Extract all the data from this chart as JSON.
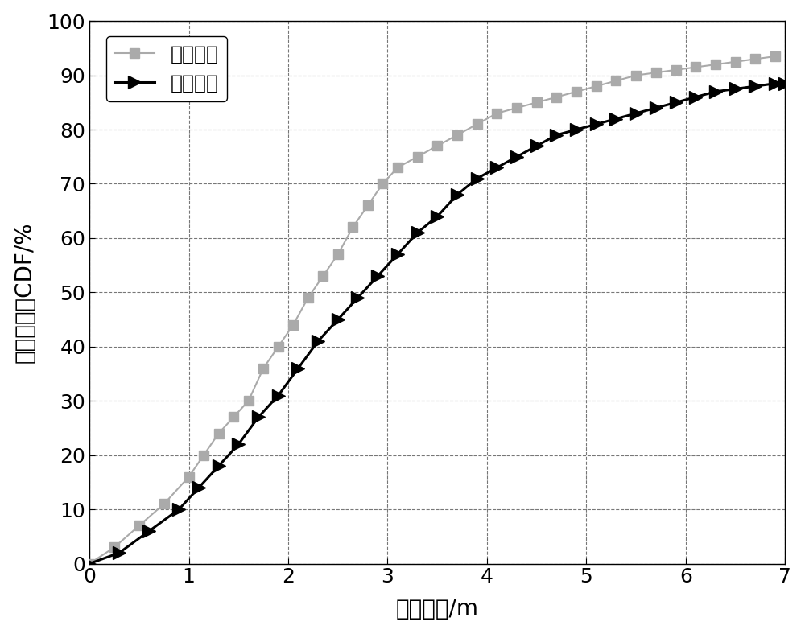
{
  "xlabel": "定位误差/m",
  "ylabel": "定位误差的CDF/%",
  "xlim": [
    0,
    7
  ],
  "ylim": [
    0,
    100
  ],
  "xticks": [
    0,
    1,
    2,
    3,
    4,
    5,
    6,
    7
  ],
  "yticks": [
    0,
    10,
    20,
    30,
    40,
    50,
    60,
    70,
    80,
    90,
    100
  ],
  "legend1": "无偏估计",
  "legend2": "有偏估计",
  "unbiased_x": [
    0,
    0.25,
    0.5,
    0.75,
    1.0,
    1.15,
    1.3,
    1.45,
    1.6,
    1.75,
    1.9,
    2.05,
    2.2,
    2.35,
    2.5,
    2.65,
    2.8,
    2.95,
    3.1,
    3.3,
    3.5,
    3.7,
    3.9,
    4.1,
    4.3,
    4.5,
    4.7,
    4.9,
    5.1,
    5.3,
    5.5,
    5.7,
    5.9,
    6.1,
    6.3,
    6.5,
    6.7,
    6.9
  ],
  "unbiased_y": [
    0,
    3,
    7,
    11,
    16,
    20,
    24,
    27,
    30,
    36,
    40,
    44,
    49,
    53,
    57,
    62,
    66,
    70,
    73,
    75,
    77,
    79,
    81,
    83,
    84,
    85,
    86,
    87,
    88,
    89,
    90,
    90.5,
    91,
    91.5,
    92,
    92.5,
    93,
    93.5
  ],
  "biased_x": [
    0,
    0.3,
    0.6,
    0.9,
    1.1,
    1.3,
    1.5,
    1.7,
    1.9,
    2.1,
    2.3,
    2.5,
    2.7,
    2.9,
    3.1,
    3.3,
    3.5,
    3.7,
    3.9,
    4.1,
    4.3,
    4.5,
    4.7,
    4.9,
    5.1,
    5.3,
    5.5,
    5.7,
    5.9,
    6.1,
    6.3,
    6.5,
    6.7,
    6.9,
    7.0
  ],
  "biased_y": [
    0,
    2,
    6,
    10,
    14,
    18,
    22,
    27,
    31,
    36,
    41,
    45,
    49,
    53,
    57,
    61,
    64,
    68,
    71,
    73,
    75,
    77,
    79,
    80,
    81,
    82,
    83,
    84,
    85,
    86,
    87,
    87.5,
    88,
    88.5,
    88.5
  ],
  "line1_color": "#aaaaaa",
  "line2_color": "#000000",
  "background_color": "#ffffff",
  "label_fontsize": 20,
  "tick_fontsize": 18,
  "legend_fontsize": 18,
  "line_width": 1.5,
  "marker_size_sq": 9,
  "marker_size_tri": 11
}
